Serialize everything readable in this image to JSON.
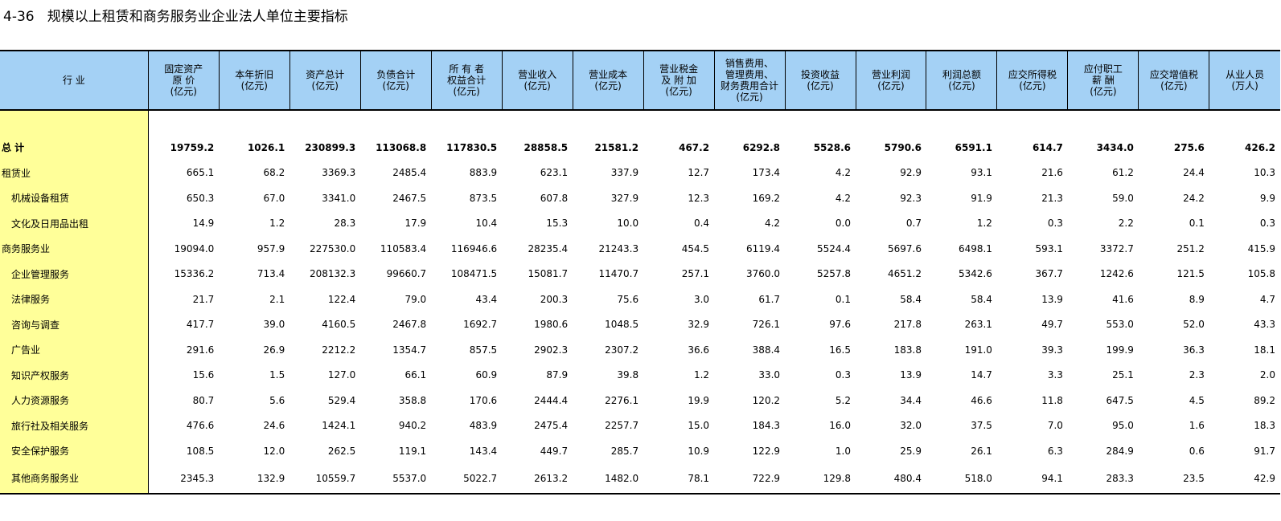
{
  "title": "4-36   规模以上租赁和商务服务业企业法人单位主要指标",
  "headers": [
    "行    业",
    "固定资产\n原    价\n(亿元)",
    "本年折旧\n(亿元)",
    "资产总计\n(亿元)",
    "负债合计\n(亿元)",
    "所 有 者\n权益合计\n(亿元)",
    "营业收入\n(亿元)",
    "营业成本\n(亿元)",
    "营业税金\n及 附 加\n(亿元)",
    "销售费用、\n管理费用、\n财务费用合计\n(亿元)",
    "投资收益\n(亿元)",
    "营业利润\n(亿元)",
    "利润总额\n(亿元)",
    "应交所得税\n(亿元)",
    "应付职工\n薪    酬\n(亿元)",
    "应交增值税\n(亿元)",
    "从业人员\n(万人)"
  ],
  "rows": [
    {
      "name": "总  计",
      "values": [
        "19759.2",
        "1026.1",
        "230899.3",
        "113068.8",
        "117830.5",
        "28858.5",
        "21581.2",
        "467.2",
        "6292.8",
        "5528.6",
        "5790.6",
        "6591.1",
        "614.7",
        "3434.0",
        "275.6",
        "426.2"
      ]
    },
    {
      "name": "租赁业",
      "values": [
        "665.1",
        "68.2",
        "3369.3",
        "2485.4",
        "883.9",
        "623.1",
        "337.9",
        "12.7",
        "173.4",
        "4.2",
        "92.9",
        "93.1",
        "21.6",
        "61.2",
        "24.4",
        "10.3"
      ]
    },
    {
      "name": "机械设备租赁",
      "values": [
        "650.3",
        "67.0",
        "3341.0",
        "2467.5",
        "873.5",
        "607.8",
        "327.9",
        "12.3",
        "169.2",
        "4.2",
        "92.3",
        "91.9",
        "21.3",
        "59.0",
        "24.2",
        "9.9"
      ]
    },
    {
      "name": "文化及日用品出租",
      "values": [
        "14.9",
        "1.2",
        "28.3",
        "17.9",
        "10.4",
        "15.3",
        "10.0",
        "0.4",
        "4.2",
        "0.0",
        "0.7",
        "1.2",
        "0.3",
        "2.2",
        "0.1",
        "0.3"
      ]
    },
    {
      "name": "商务服务业",
      "values": [
        "19094.0",
        "957.9",
        "227530.0",
        "110583.4",
        "116946.6",
        "28235.4",
        "21243.3",
        "454.5",
        "6119.4",
        "5524.4",
        "5697.6",
        "6498.1",
        "593.1",
        "3372.7",
        "251.2",
        "415.9"
      ]
    },
    {
      "name": "企业管理服务",
      "values": [
        "15336.2",
        "713.4",
        "208132.3",
        "99660.7",
        "108471.5",
        "15081.7",
        "11470.7",
        "257.1",
        "3760.0",
        "5257.8",
        "4651.2",
        "5342.6",
        "367.7",
        "1242.6",
        "121.5",
        "105.8"
      ]
    },
    {
      "name": "法律服务",
      "values": [
        "21.7",
        "2.1",
        "122.4",
        "79.0",
        "43.4",
        "200.3",
        "75.6",
        "3.0",
        "61.7",
        "0.1",
        "58.4",
        "58.4",
        "13.9",
        "41.6",
        "8.9",
        "4.7"
      ]
    },
    {
      "name": "咨询与调查",
      "values": [
        "417.7",
        "39.0",
        "4160.5",
        "2467.8",
        "1692.7",
        "1980.6",
        "1048.5",
        "32.9",
        "726.1",
        "97.6",
        "217.8",
        "263.1",
        "49.7",
        "553.0",
        "52.0",
        "43.3"
      ]
    },
    {
      "name": "广告业",
      "values": [
        "291.6",
        "26.9",
        "2212.2",
        "1354.7",
        "857.5",
        "2902.3",
        "2307.2",
        "36.6",
        "388.4",
        "16.5",
        "183.8",
        "191.0",
        "39.3",
        "199.9",
        "36.3",
        "18.1"
      ]
    },
    {
      "name": "知识产权服务",
      "values": [
        "15.6",
        "1.5",
        "127.0",
        "66.1",
        "60.9",
        "87.9",
        "39.8",
        "1.2",
        "33.0",
        "0.3",
        "13.9",
        "14.7",
        "3.3",
        "25.1",
        "2.3",
        "2.0"
      ]
    },
    {
      "name": "人力资源服务",
      "values": [
        "80.7",
        "5.6",
        "529.4",
        "358.8",
        "170.6",
        "2444.4",
        "2276.1",
        "19.9",
        "120.2",
        "5.2",
        "34.4",
        "46.6",
        "11.8",
        "647.5",
        "4.5",
        "89.2"
      ]
    },
    {
      "name": "旅行社及相关服务",
      "values": [
        "476.6",
        "24.6",
        "1424.1",
        "940.2",
        "483.9",
        "2475.4",
        "2257.7",
        "15.0",
        "184.3",
        "16.0",
        "32.0",
        "37.5",
        "7.0",
        "95.0",
        "1.6",
        "18.3"
      ]
    },
    {
      "name": "安全保护服务",
      "values": [
        "108.5",
        "12.0",
        "262.5",
        "119.1",
        "143.4",
        "449.7",
        "285.7",
        "10.9",
        "122.9",
        "1.0",
        "25.9",
        "26.1",
        "6.3",
        "284.9",
        "0.6",
        "91.7"
      ]
    },
    {
      "name": "其他商务服务业",
      "values": [
        "2345.3",
        "132.9",
        "10559.7",
        "5537.0",
        "5022.7",
        "2613.2",
        "1482.0",
        "78.1",
        "722.9",
        "129.8",
        "480.4",
        "518.0",
        "94.1",
        "283.3",
        "23.5",
        "42.9"
      ]
    }
  ]
}
